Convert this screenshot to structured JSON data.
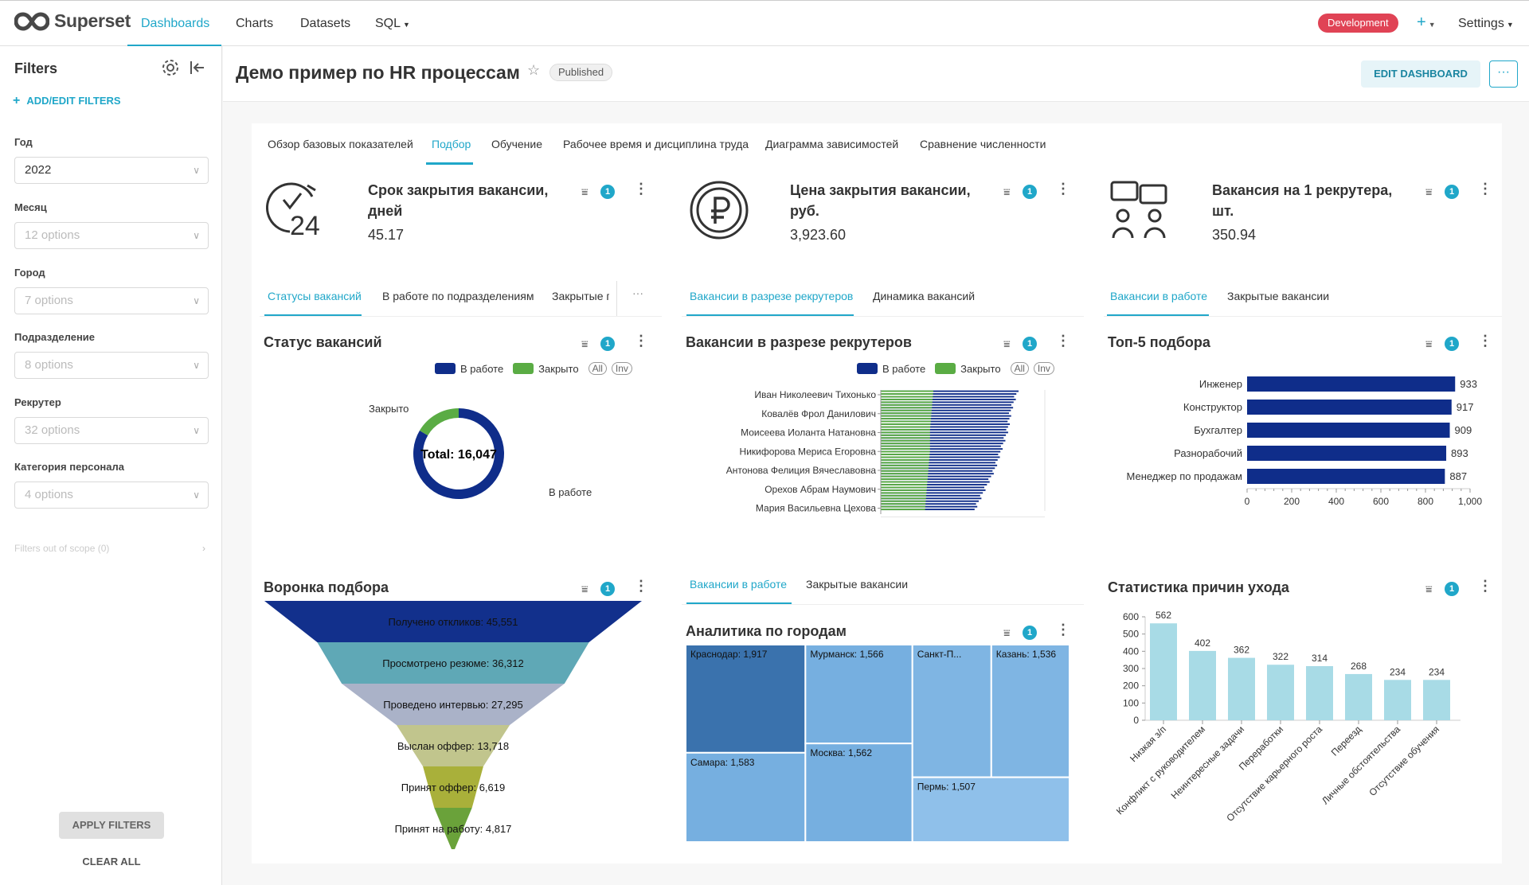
{
  "nav": {
    "logo": "Superset",
    "items": [
      "Dashboards",
      "Charts",
      "Datasets",
      "SQL"
    ],
    "env_badge": "Development",
    "plus": "+",
    "settings": "Settings"
  },
  "sidebar": {
    "title": "Filters",
    "add_edit": "ADD/EDIT FILTERS",
    "filters": [
      {
        "label": "Год",
        "value": "2022"
      },
      {
        "label": "Месяц",
        "placeholder": "12 options"
      },
      {
        "label": "Город",
        "placeholder": "7 options"
      },
      {
        "label": "Подразделение",
        "placeholder": "8 options"
      },
      {
        "label": "Рекрутер",
        "placeholder": "32 options"
      },
      {
        "label": "Категория персонала",
        "placeholder": "4 options"
      }
    ],
    "out_of_scope": "Filters out of scope (0)",
    "apply": "APPLY FILTERS",
    "clear": "CLEAR ALL"
  },
  "header": {
    "title": "Демо пример по HR процессам",
    "status": "Published",
    "edit": "EDIT DASHBOARD",
    "more": "···"
  },
  "tabs": [
    "Обзор базовых показателей",
    "Подбор",
    "Обучение",
    "Рабочее время и дисциплина труда",
    "Диаграмма зависимостей",
    "Сравнение численности"
  ],
  "filter_badge": "1",
  "kpis": [
    {
      "title_l1": "Срок закрытия вакансии,",
      "title_l2": "дней",
      "value": "45.17",
      "icon": "clock-24-icon"
    },
    {
      "title_l1": "Цена закрытия вакансии,",
      "title_l2": "руб.",
      "value": "3,923.60",
      "icon": "ruble-coin-icon"
    },
    {
      "title_l1": "Вакансия на 1 рекрутера,",
      "title_l2": "шт.",
      "value": "350.94",
      "icon": "people-chat-icon"
    }
  ],
  "subtabs": {
    "col1": [
      "Статусы вакансий",
      "В работе по подразделениям",
      "Закрытые по",
      "···"
    ],
    "col2": [
      "Вакансии в разрезе рекрутеров",
      "Динамика вакансий"
    ],
    "col3": [
      "Вакансии в работе",
      "Закрытые вакансии"
    ],
    "col2b": [
      "Вакансии в работе",
      "Закрытые вакансии"
    ]
  },
  "legend": {
    "s1": "В работе",
    "s2": "Закрыто",
    "all": "All",
    "inv": "Inv"
  },
  "colors": {
    "accent": "#20a7c9",
    "navy": "#0f2d8a",
    "green": "#5aac44",
    "light_blue": "#a8dbe6"
  },
  "chart_data": [
    {
      "type": "pie",
      "title": "Статус вакансий",
      "labels": [
        "В работе",
        "Закрыто"
      ],
      "values": [
        13400,
        2647
      ],
      "center_text": "Total: 16,047"
    },
    {
      "type": "bar",
      "orientation": "horizontal",
      "title": "Вакансии в разрезе рекрутеров",
      "categories": [
        "Иван Николеевич Тихонько",
        "Ковалёв Фрол Данилович",
        "Моисеева Иоланта Натановна",
        "Никифорова Мериса Егоровна",
        "Антонова Фелиция Вячеславовна",
        "Орехов Абрам Наумович",
        "Мария Васильевна Цехова"
      ],
      "series": [
        {
          "name": "В работе",
          "values": [
            420,
            400,
            390,
            370,
            350,
            320,
            290
          ]
        },
        {
          "name": "Закрыто",
          "values": [
            160,
            155,
            150,
            150,
            145,
            140,
            135
          ]
        }
      ],
      "xlim": [
        0,
        500
      ],
      "xticks": [
        0,
        100,
        200,
        300,
        400,
        500
      ]
    },
    {
      "type": "bar",
      "orientation": "horizontal",
      "title": "Топ-5 подбора",
      "categories": [
        "Инженер",
        "Конструктор",
        "Бухгалтер",
        "Разнорабочий",
        "Менеджер по продажам"
      ],
      "values": [
        933,
        917,
        909,
        893,
        887
      ],
      "xlim": [
        0,
        1000
      ],
      "xticks": [
        "0",
        "200",
        "400",
        "600",
        "800",
        "1,000"
      ]
    },
    {
      "type": "funnel",
      "title": "Воронка подбора",
      "labels": [
        "Получено откликов: 45,551",
        "Просмотрено резюме: 36,312",
        "Проведено интервью: 27,295",
        "Выслан оффер: 13,718",
        "Принят оффер: 6,619",
        "Принят на работу: 4,817"
      ],
      "values": [
        45551,
        36312,
        27295,
        13718,
        6619,
        4817
      ]
    },
    {
      "type": "treemap",
      "title": "Аналитика по городам",
      "labels": [
        "Краснодар: 1,917",
        "Самара: 1,583",
        "Мурманск: 1,566",
        "Москва: 1,562",
        "Санкт-П...",
        "Казань: 1,536",
        "Пермь: 1,507"
      ],
      "values": [
        1917,
        1583,
        1566,
        1562,
        1550,
        1536,
        1507
      ]
    },
    {
      "type": "bar",
      "title": "Статистика причин ухода",
      "categories": [
        "Низкая з/п",
        "Конфликт с руководителем",
        "Неинтересные задачи",
        "Переработки",
        "Отсутствие карьерного роста",
        "Переезд",
        "Личные обстоятельства",
        "Отсутствие обучения"
      ],
      "values": [
        562,
        402,
        362,
        322,
        314,
        268,
        234,
        234
      ],
      "ylim": [
        0,
        600
      ],
      "yticks": [
        0,
        100,
        200,
        300,
        400,
        500,
        600
      ]
    }
  ]
}
